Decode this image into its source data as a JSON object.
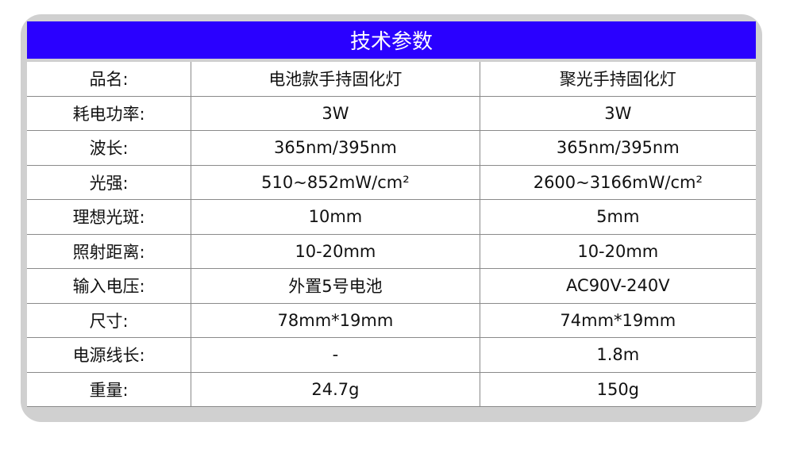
{
  "title": "技术参数",
  "colors": {
    "header_bg": "#2a00ff",
    "frame": "#d0d0d0"
  },
  "rows": [
    {
      "label": "品名:",
      "a": "电池款手持固化灯",
      "b": "聚光手持固化灯"
    },
    {
      "label": "耗电功率:",
      "a": "3W",
      "b": "3W"
    },
    {
      "label": "波长:",
      "a": "365nm/395nm",
      "b": "365nm/395nm"
    },
    {
      "label": "光强:",
      "a": "510~852mW/cm²",
      "b": "2600~3166mW/cm²"
    },
    {
      "label": "理想光斑:",
      "a": "10mm",
      "b": "5mm"
    },
    {
      "label": "照射距离:",
      "a": "10-20mm",
      "b": "10-20mm"
    },
    {
      "label": "输入电压:",
      "a": "外置5号电池",
      "b": "AC90V-240V"
    },
    {
      "label": "尺寸:",
      "a": "78mm*19mm",
      "b": "74mm*19mm"
    },
    {
      "label": "电源线长:",
      "a": "-",
      "b": "1.8m"
    },
    {
      "label": "重量:",
      "a": "24.7g",
      "b": "150g"
    }
  ]
}
